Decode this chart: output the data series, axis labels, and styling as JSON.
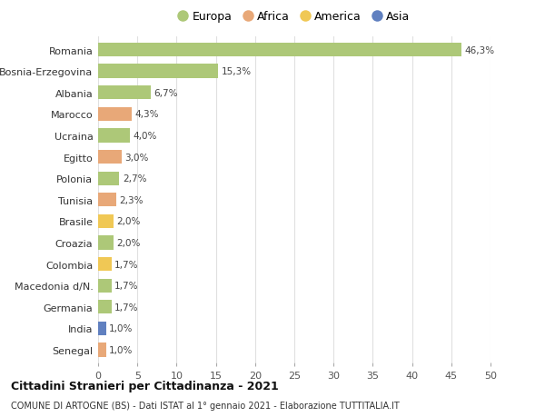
{
  "categories": [
    "Romania",
    "Bosnia-Erzegovina",
    "Albania",
    "Marocco",
    "Ucraina",
    "Egitto",
    "Polonia",
    "Tunisia",
    "Brasile",
    "Croazia",
    "Colombia",
    "Macedonia d/N.",
    "Germania",
    "India",
    "Senegal"
  ],
  "values": [
    46.3,
    15.3,
    6.7,
    4.3,
    4.0,
    3.0,
    2.7,
    2.3,
    2.0,
    2.0,
    1.7,
    1.7,
    1.7,
    1.0,
    1.0
  ],
  "continents": [
    "Europa",
    "Europa",
    "Europa",
    "Africa",
    "Europa",
    "Africa",
    "Europa",
    "Africa",
    "America",
    "Europa",
    "America",
    "Europa",
    "Europa",
    "Asia",
    "Africa"
  ],
  "colors": {
    "Europa": "#adc878",
    "Africa": "#e8a878",
    "America": "#f0c855",
    "Asia": "#6080c0"
  },
  "legend_order": [
    "Europa",
    "Africa",
    "America",
    "Asia"
  ],
  "title": "Cittadini Stranieri per Cittadinanza - 2021",
  "subtitle": "COMUNE DI ARTOGNE (BS) - Dati ISTAT al 1° gennaio 2021 - Elaborazione TUTTITALIA.IT",
  "xlim": [
    0,
    50
  ],
  "xticks": [
    0,
    5,
    10,
    15,
    20,
    25,
    30,
    35,
    40,
    45,
    50
  ],
  "background_color": "#ffffff",
  "grid_color": "#e0e0e0",
  "bar_height": 0.65
}
